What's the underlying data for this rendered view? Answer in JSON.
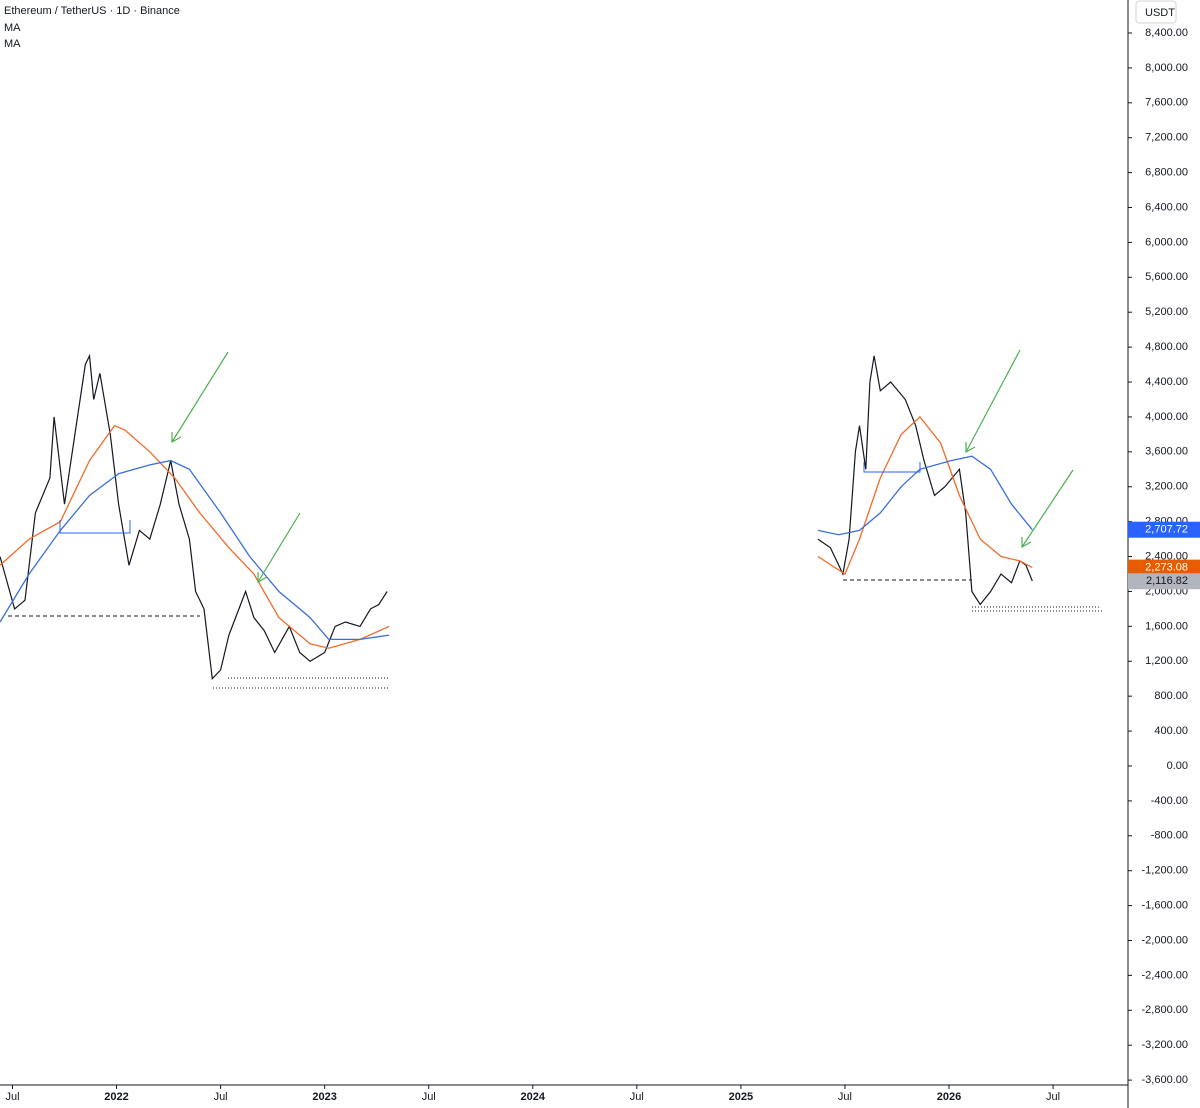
{
  "chart_data": {
    "type": "line",
    "title": "Ethereum / TetherUS · 1D · Binance",
    "axis_unit": "USDT",
    "xlim": [
      2021.44,
      2026.86
    ],
    "xticks": [
      {
        "value": 2021.5,
        "label": "Jul"
      },
      2022,
      {
        "value": 2022.5,
        "label": "Jul"
      },
      2023,
      {
        "value": 2023.5,
        "label": "Jul"
      },
      2024,
      {
        "value": 2024.5,
        "label": "Jul"
      },
      2025,
      {
        "value": 2025.5,
        "label": "Jul"
      },
      2026,
      {
        "value": 2026.5,
        "label": "Jul"
      }
    ],
    "ylim": [
      -3656,
      8778
    ],
    "yticks": [
      {
        "value": -3600,
        "label": "-3,600.00"
      },
      {
        "value": -3200,
        "label": "-3,200.00"
      },
      {
        "value": -2800,
        "label": "-2,800.00"
      },
      {
        "value": -2400,
        "label": "-2,400.00"
      },
      {
        "value": -2000,
        "label": "-2,000.00"
      },
      {
        "value": -1600,
        "label": "-1,600.00"
      },
      {
        "value": -1200,
        "label": "-1,200.00"
      },
      {
        "value": -800,
        "label": "-800.00"
      },
      {
        "value": -400,
        "label": "-400.00"
      },
      {
        "value": 0,
        "label": "0.00"
      },
      {
        "value": 400,
        "label": "400.00"
      },
      {
        "value": 800,
        "label": "800.00"
      },
      {
        "value": 1200,
        "label": "1,200.00"
      },
      {
        "value": 1600,
        "label": "1,600.00"
      },
      {
        "value": 2000,
        "label": "2,000.00"
      },
      {
        "value": 2400,
        "label": "2,400.00"
      },
      {
        "value": 2800,
        "label": "2,800.00"
      },
      {
        "value": 3200,
        "label": "3,200.00"
      },
      {
        "value": 3600,
        "label": "3,600.00"
      },
      {
        "value": 4000,
        "label": "4,000.00"
      },
      {
        "value": 4400,
        "label": "4,400.00"
      },
      {
        "value": 4800,
        "label": "4,800.00"
      },
      {
        "value": 5200,
        "label": "5,200.00"
      },
      {
        "value": 5600,
        "label": "5,600.00"
      },
      {
        "value": 6000,
        "label": "6,000.00"
      },
      {
        "value": 6400,
        "label": "6,400.00"
      },
      {
        "value": 6800,
        "label": "6,800.00"
      },
      {
        "value": 7200,
        "label": "7,200.00"
      },
      {
        "value": 7600,
        "label": "7,600.00"
      },
      {
        "value": 8000,
        "label": "8,000.00"
      },
      {
        "value": 8400,
        "label": "8,400.00"
      }
    ],
    "grid": false,
    "series": [
      {
        "color": "#131722",
        "width": 1.2,
        "x": [
          2021.44,
          2021.51,
          2021.56,
          2021.61,
          2021.68,
          2021.7,
          2021.75,
          2021.8,
          2021.85,
          2021.87,
          2021.89,
          2021.92,
          2021.97,
          2022.01,
          2022.06,
          2022.11,
          2022.16,
          2022.21,
          2022.26,
          2022.3,
          2022.35,
          2022.38,
          2022.42,
          2022.46,
          2022.5,
          2022.54,
          2022.62,
          2022.66,
          2022.71,
          2022.76,
          2022.83,
          2022.88,
          2022.93,
          2023.0,
          2023.05,
          2023.1,
          2023.17,
          2023.22,
          2023.26,
          2023.3,
          2024.0,
          2025.37,
          2025.43,
          2025.49,
          2025.52,
          2025.55,
          2025.57,
          2025.6,
          2025.62,
          2025.64,
          2025.67,
          2025.72,
          2025.79,
          2025.84,
          2025.88,
          2025.93,
          2025.98,
          2026.05,
          2026.08,
          2026.11,
          2026.15,
          2026.2,
          2026.25,
          2026.3,
          2026.34,
          2026.37,
          2026.4
        ],
        "values": [
          2400,
          1800,
          1900,
          2900,
          3300,
          4000,
          3000,
          3800,
          4600,
          4700,
          4200,
          4500,
          3800,
          3000,
          2300,
          2700,
          2600,
          3000,
          3500,
          3000,
          2600,
          2000,
          1800,
          1000,
          1100,
          1500,
          2000,
          1700,
          1550,
          1300,
          1600,
          1300,
          1200,
          1300,
          1600,
          1650,
          1600,
          1800,
          1850,
          2000,
          null,
          2600,
          2500,
          2200,
          2600,
          3600,
          3900,
          3400,
          4400,
          4700,
          4300,
          4400,
          4200,
          3900,
          3500,
          3100,
          3200,
          3400,
          2900,
          2000,
          1850,
          2000,
          2200,
          2100,
          2350,
          2300,
          2120
        ]
      },
      {
        "name": "MA",
        "color": "#ef6c2a",
        "width": 1.3,
        "x": [
          2021.44,
          2021.58,
          2021.73,
          2021.87,
          2021.99,
          2022.04,
          2022.16,
          2022.28,
          2022.4,
          2022.54,
          2022.66,
          2022.78,
          2022.93,
          2023.02,
          2023.17,
          2023.31,
          2024.0,
          2025.37,
          2025.5,
          2025.57,
          2025.67,
          2025.77,
          2025.86,
          2025.96,
          2026.05,
          2026.15,
          2026.25,
          2026.34,
          2026.4
        ],
        "values": [
          2300,
          2600,
          2800,
          3500,
          3900,
          3850,
          3600,
          3300,
          2900,
          2500,
          2200,
          1700,
          1400,
          1350,
          1450,
          1600,
          null,
          2400,
          2200,
          2600,
          3300,
          3800,
          4000,
          3700,
          3100,
          2600,
          2400,
          2350,
          2273.08
        ]
      },
      {
        "name": "MA",
        "color": "#3a6fd8",
        "width": 1.3,
        "x": [
          2021.44,
          2021.58,
          2021.73,
          2021.87,
          2022.01,
          2022.16,
          2022.26,
          2022.35,
          2022.5,
          2022.64,
          2022.78,
          2022.93,
          2023.02,
          2023.17,
          2023.31,
          2024.0,
          2025.37,
          2025.47,
          2025.57,
          2025.67,
          2025.77,
          2025.86,
          2026.01,
          2026.11,
          2026.2,
          2026.3,
          2026.4
        ],
        "values": [
          1650,
          2200,
          2700,
          3100,
          3350,
          3450,
          3500,
          3400,
          2900,
          2400,
          2000,
          1700,
          1450,
          1450,
          1500,
          null,
          2700,
          2650,
          2700,
          2900,
          3200,
          3400,
          3500,
          3550,
          3400,
          3000,
          2707.72
        ]
      }
    ],
    "price_labels": [
      {
        "value": 2707.72,
        "label": "2,707.72",
        "color": "#2962ff"
      },
      {
        "value": 2273.08,
        "label": "2,273.08",
        "color": "#e65c00"
      },
      {
        "value": 2116.82,
        "label": "2,116.82",
        "color": "#b2b5be"
      }
    ]
  }
}
